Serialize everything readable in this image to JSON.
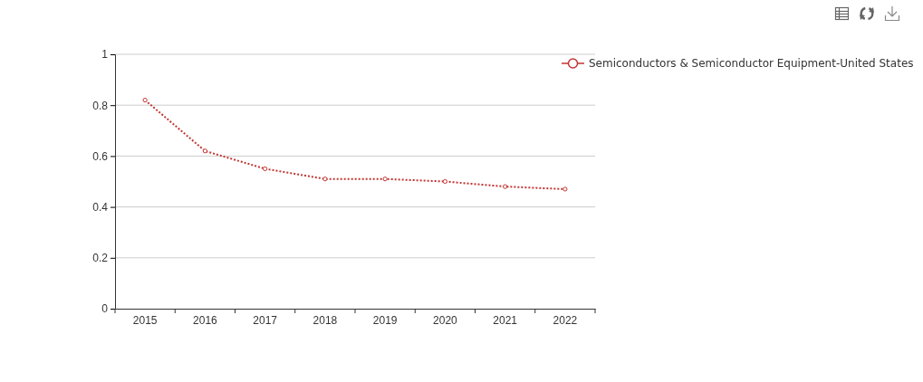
{
  "chart_data": {
    "type": "line",
    "categories": [
      "2015",
      "2016",
      "2017",
      "2018",
      "2019",
      "2020",
      "2021",
      "2022"
    ],
    "series": [
      {
        "name": "Semiconductors & Semiconductor Equipment-United States",
        "color": "#c23531",
        "values": [
          0.82,
          0.62,
          0.55,
          0.51,
          0.51,
          0.5,
          0.48,
          0.47
        ]
      }
    ],
    "ylim": [
      0,
      1
    ],
    "yticks": [
      0,
      0.2,
      0.4,
      0.6,
      0.8,
      1
    ],
    "grid": "y",
    "legend": "top right",
    "marker": "circle",
    "line_style": "dotted"
  }
}
